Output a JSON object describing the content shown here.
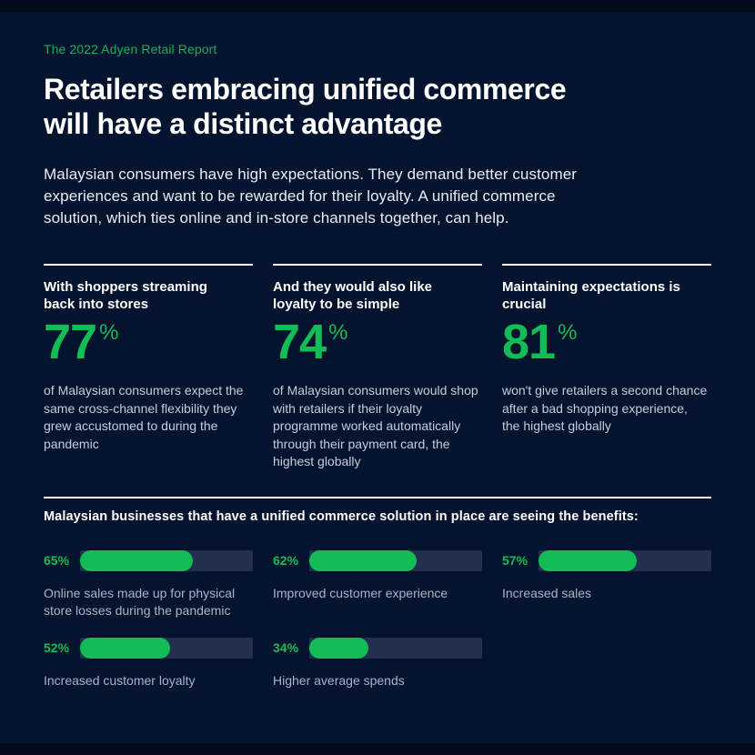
{
  "page": {
    "eyebrow": "The 2022 Adyen Retail Report",
    "title_line1": "Retailers embracing unified commerce",
    "title_line2": "will have a distinct advantage",
    "intro": "Malaysian consumers have high expectations. They demand better customer experiences and want to be rewarded for their loyalty. A unified commerce solution, which ties online and in-store channels together, can help."
  },
  "stats": [
    {
      "heading": "With shoppers streaming back into stores",
      "value": "77",
      "unit": "%",
      "description": "of Malaysian consumers expect the same cross-channel flexibility they grew accustomed to during the pandemic"
    },
    {
      "heading": "And they would also like loyalty to be simple",
      "value": "74",
      "unit": "%",
      "description": "of Malaysian consumers would shop with retailers if their loyalty programme worked automatically through their payment card, the highest globally"
    },
    {
      "heading": "Maintaining expectations is crucial",
      "value": "81",
      "unit": "%",
      "description": "won't give retailers a second chance after a bad shopping experience, the highest globally"
    }
  ],
  "benefits": {
    "heading": "Malaysian businesses that have a unified commerce solution in place are seeing the benefits:",
    "items": [
      {
        "percent": "65%",
        "value": 65,
        "label": "Online sales made up for physical store losses during the pandemic"
      },
      {
        "percent": "62%",
        "value": 62,
        "label": "Improved customer experience"
      },
      {
        "percent": "57%",
        "value": 57,
        "label": "Increased sales"
      },
      {
        "percent": "52%",
        "value": 52,
        "label": "Increased customer loyalty"
      },
      {
        "percent": "34%",
        "value": 34,
        "label": "Higher average spends"
      }
    ]
  },
  "chart_data": {
    "type": "bar",
    "orientation": "horizontal",
    "title": "Malaysian businesses that have a unified commerce solution in place are seeing the benefits:",
    "categories": [
      "Online sales made up for physical store losses during the pandemic",
      "Improved customer experience",
      "Increased sales",
      "Increased customer loyalty",
      "Higher average spends"
    ],
    "values": [
      65,
      62,
      57,
      52,
      34
    ],
    "unit": "%",
    "xlim": [
      0,
      100
    ],
    "grid": false,
    "bar_color": "#12bd55",
    "track_color": "#222f4e"
  },
  "colors": {
    "background": "#04132e",
    "edge_band": "#020a1b",
    "accent_green": "#12bd55",
    "heading_white": "#ffffff",
    "body_text": "#e9edf4",
    "muted_text": "#a9b4c6",
    "bar_track": "#222f4e"
  }
}
